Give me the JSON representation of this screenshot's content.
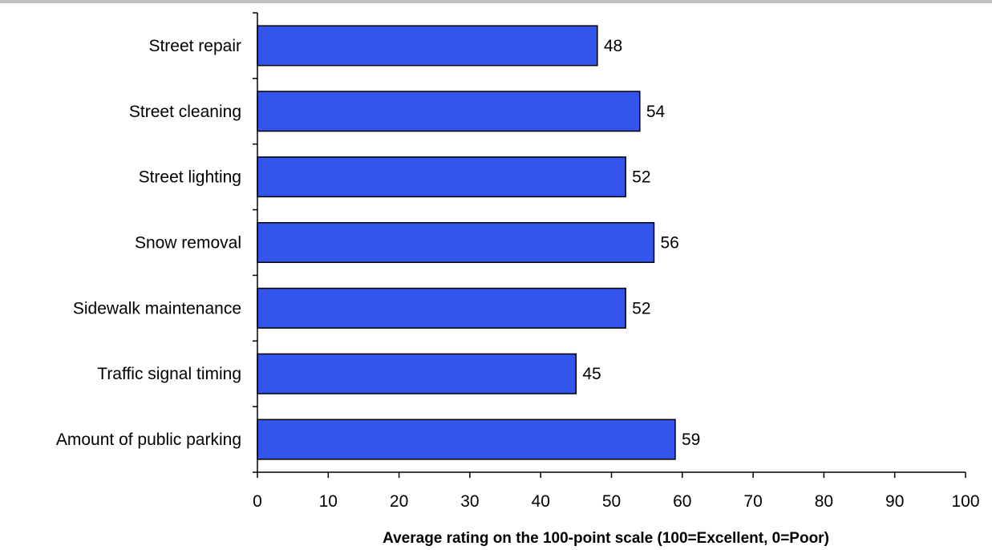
{
  "chart_data": {
    "type": "bar",
    "orientation": "horizontal",
    "categories": [
      "Street repair",
      "Street cleaning",
      "Street lighting",
      "Snow removal",
      "Sidewalk maintenance",
      "Traffic signal timing",
      "Amount of public parking"
    ],
    "values": [
      48,
      54,
      52,
      56,
      52,
      45,
      59
    ],
    "xlabel": "Average rating on the 100-point scale (100=Excellent, 0=Poor)",
    "xlim": [
      0,
      100
    ],
    "xticks": [
      0,
      10,
      20,
      30,
      40,
      50,
      60,
      70,
      80,
      90,
      100
    ],
    "grid": false,
    "data_labels": true,
    "bar_color": "#3355ee"
  }
}
